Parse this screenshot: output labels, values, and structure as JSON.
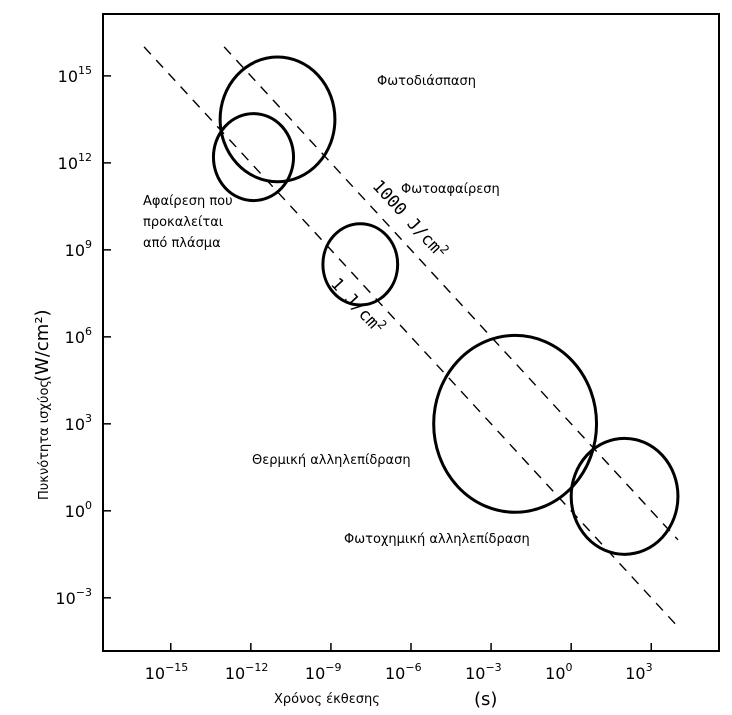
{
  "chart_data": {
    "type": "scatter",
    "title": "",
    "xlabel": "Χρόνος έκθεσης",
    "xunit": "(s)",
    "ylabel": "Πυκνότητα ισχύος",
    "yunit": "(W/cm²)",
    "ylabel_color": "#b22222",
    "x_scale": "log10",
    "y_scale": "log10",
    "xlim": [
      -17.5,
      5.5
    ],
    "ylim": [
      -4.8,
      17.1
    ],
    "grid": false,
    "x_ticks": [
      {
        "base": "10",
        "exp": "−15",
        "value": -15
      },
      {
        "base": "10",
        "exp": "−12",
        "value": -12
      },
      {
        "base": "10",
        "exp": "−9",
        "value": -9
      },
      {
        "base": "10",
        "exp": "−6",
        "value": -6
      },
      {
        "base": "10",
        "exp": "−3",
        "value": -3
      },
      {
        "base": "10",
        "exp": "0",
        "value": 0
      },
      {
        "base": "10",
        "exp": "3",
        "value": 3
      }
    ],
    "y_ticks": [
      {
        "base": "10",
        "exp": "15",
        "value": 15
      },
      {
        "base": "10",
        "exp": "12",
        "value": 12
      },
      {
        "base": "10",
        "exp": "9",
        "value": 9
      },
      {
        "base": "10",
        "exp": "6",
        "value": 6
      },
      {
        "base": "10",
        "exp": "3",
        "value": 3
      },
      {
        "base": "10",
        "exp": "0",
        "value": 0
      },
      {
        "base": "10",
        "exp": "−3",
        "value": -3
      }
    ],
    "regions": [
      {
        "id": "photodisruption",
        "label": "Φωτοδιάσπαση",
        "center_log_s": -11.0,
        "center_log_wcm2": 13.5,
        "radius_decades": 2.15
      },
      {
        "id": "plasma-ablation",
        "label_lines": [
          "Αφαίρεση που",
          "προκαλείται",
          "από πλάσμα"
        ],
        "center_log_s": -11.9,
        "center_log_wcm2": 12.2,
        "radius_decades": 1.5
      },
      {
        "id": "photoablation",
        "label": "Φωτοαφαίρεση",
        "center_log_s": -7.9,
        "center_log_wcm2": 8.5,
        "radius_decades": 1.4
      },
      {
        "id": "thermal",
        "label": "Θερμική αλληλεπίδραση",
        "center_log_s": -2.1,
        "center_log_wcm2": 3.0,
        "radius_decades": 3.05
      },
      {
        "id": "photochemical",
        "label": "Φωτοχημική αλληλεπίδραση",
        "center_log_s": 2.0,
        "center_log_wcm2": 0.5,
        "radius_decades": 2.0
      }
    ],
    "lines": [
      {
        "id": "1-j-cm2",
        "label": "1 J/cm²",
        "label_base": "1 J/cm",
        "label_sup": "2",
        "fluence_j_cm2": 1,
        "from_log_s": -16.0,
        "to_log_s": 4.0,
        "style": "dashed"
      },
      {
        "id": "1000-j-cm2",
        "label": "1000 J/cm²",
        "label_base": "1000 J/cm",
        "label_sup": "2",
        "fluence_j_cm2": 1000,
        "from_log_s": -13.0,
        "to_log_s": 4.0,
        "style": "dashed"
      }
    ]
  }
}
